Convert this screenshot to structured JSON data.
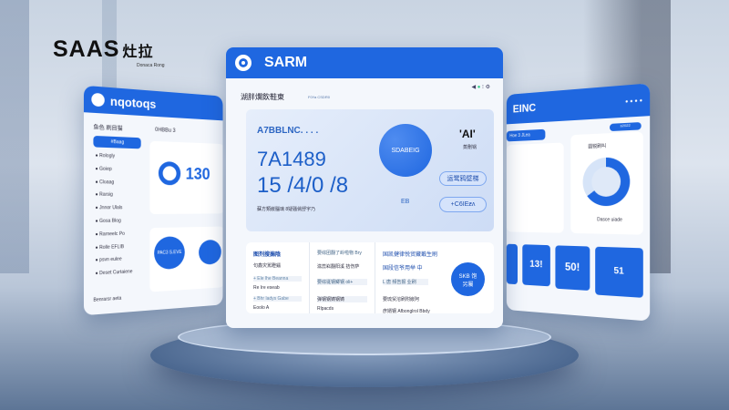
{
  "brand": {
    "logo": "SAAS",
    "logo_cjk": "灶拉",
    "logo_sub": "Donaca Rong"
  },
  "left_panel": {
    "title": "nqotoqs",
    "sidebar_title": "鱼色 刷目猫",
    "active": "#Baag",
    "items": [
      "Rologly",
      "Goiep",
      "Cloaag",
      "Rarsig",
      "Jnnor Ulals",
      "Gosa Blog",
      "Rarneelc Po",
      "Rolle EFLIB",
      "psvn eulee",
      "Deset Curtaiene"
    ],
    "section": "0HBBu 3",
    "stat": "130",
    "circle_label": "PAC3 S.EVE",
    "footer": "Benrarsr aeta"
  },
  "main": {
    "title": "SARM",
    "subtitle": "湖胖爛飲鞋東",
    "subtitle_small": "F0Ya CSDR0",
    "hero_label": "A7BBLNC. . . .",
    "hero_num1": "7A1489",
    "hero_num2": "15 /4/0 /8",
    "hero_caption": "蘇方類嵌腦璃 8疑骚倘舒宇乃",
    "circle_text": "SDABEIG",
    "ai": "'AI'",
    "ai_sub": "蒸刪锅",
    "btn1": "运鹭鸦壁梯",
    "btn2": "+C6IEƶʌ",
    "mid_code": "EB",
    "col1": [
      "图剂搜搧陰",
      "句鑫灾駡瞪鐳",
      "+ Ele lhe Beanna",
      "Re Ire eseab",
      "+ Bhr ladys Gabe",
      "Eoolo A"
    ],
    "col2": [
      "要综团翻了岭啦物 Bry",
      "滋蕊嵙翻阳溪 拮伤萨",
      "要综诞钢鲫钢 oli+",
      "弹钢钢铸钢铸",
      "Rlpacds"
    ],
    "col3": [
      "国凯健律悦贸藏蕺生刷",
      "国段信爷用举 中",
      "L 唐 頻告报 业刷",
      "要琉贸溶刷附嵌阿",
      "彦婿钢 Afbonglrol Bbdy"
    ],
    "badge": "SKB 饱另屬"
  },
  "right_panel": {
    "title": "EINC",
    "tag": "s2022",
    "tab": "Hoe 3 JLea",
    "chart_title": "圆锐刷叫",
    "legend": "Dasce uiade",
    "tiles": [
      "13!",
      "50!",
      "51"
    ]
  },
  "colors": {
    "accent": "#1f67e0"
  }
}
